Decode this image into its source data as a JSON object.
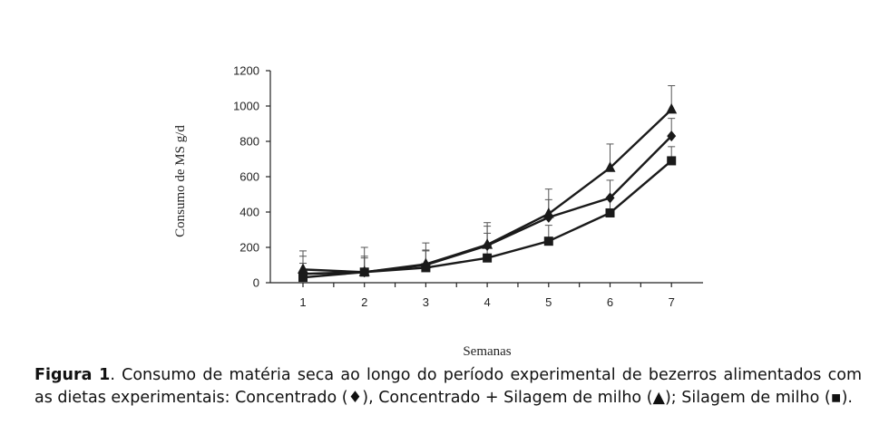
{
  "chart_data": {
    "type": "line",
    "x": [
      1,
      2,
      3,
      4,
      5,
      6,
      7
    ],
    "xlabel": "Semanas",
    "ylabel": "Consumo de MS g/d",
    "ylim": [
      0,
      1200
    ],
    "yticks": [
      0,
      200,
      400,
      600,
      800,
      1000,
      1200
    ],
    "grid": false,
    "series": [
      {
        "marker": "diamond",
        "values": [
          50,
          60,
          100,
          210,
          370,
          480,
          830
        ],
        "error": [
          100,
          90,
          80,
          110,
          100,
          100,
          100
        ]
      },
      {
        "marker": "triangle",
        "values": [
          75,
          60,
          105,
          215,
          390,
          650,
          980
        ],
        "error": [
          105,
          140,
          120,
          125,
          140,
          135,
          135
        ]
      },
      {
        "marker": "square",
        "values": [
          30,
          60,
          85,
          140,
          235,
          395,
          690
        ],
        "error": [
          80,
          80,
          100,
          140,
          90,
          90,
          80
        ]
      }
    ]
  },
  "caption": {
    "label": "Figura 1",
    "text": ". Consumo de matéria seca ao longo do período experimental de bezerros alimentados com as dietas experimentais: Concentrado (♦), Concentrado + Silagem de milho (▲);  Silagem de milho (▪)."
  }
}
